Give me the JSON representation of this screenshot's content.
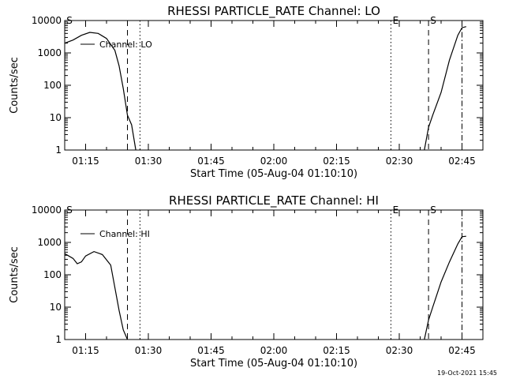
{
  "footer": {
    "date_stamp": "19-Oct-2021 15:45"
  },
  "chart_data": [
    {
      "type": "line",
      "title": "RHESSI PARTICLE_RATE Channel: LO",
      "xlabel": "Start Time (05-Aug-04 01:10:10)",
      "ylabel": "Counts/sec",
      "yscale": "log",
      "ylim": [
        1,
        10000
      ],
      "xlim": [
        "01:10",
        "02:50"
      ],
      "x_ticks": [
        "01:15",
        "01:30",
        "01:45",
        "02:00",
        "02:15",
        "02:30",
        "02:45"
      ],
      "y_ticks": [
        "1",
        "10",
        "100",
        "1000",
        "10000"
      ],
      "legend": {
        "label": "Channel: LO",
        "placement": "top-left"
      },
      "markers": [
        {
          "label": "S",
          "time": "01:10",
          "style": "none"
        },
        {
          "label": "",
          "time": "01:25",
          "style": "dashed"
        },
        {
          "label": "",
          "time": "01:28",
          "style": "dotted"
        },
        {
          "label": "E",
          "time": "02:28",
          "style": "dotted"
        },
        {
          "label": "S",
          "time": "02:37",
          "style": "dashed"
        },
        {
          "label": "",
          "time": "02:45",
          "style": "dashdot"
        }
      ],
      "series": [
        {
          "segments": [
            [
              [
                "01:10",
                2000
              ],
              [
                "01:12",
                2500
              ],
              [
                "01:14",
                3500
              ],
              [
                "01:16",
                4300
              ],
              [
                "01:18",
                4000
              ],
              [
                "01:20",
                2800
              ],
              [
                "01:22",
                1200
              ],
              [
                "01:23",
                400
              ],
              [
                "01:24",
                80
              ],
              [
                "01:25",
                12
              ],
              [
                "01:26",
                6
              ],
              [
                "01:27",
                1
              ]
            ],
            [
              [
                "02:36",
                1
              ],
              [
                "02:37",
                5
              ],
              [
                "02:38",
                12
              ],
              [
                "02:40",
                60
              ],
              [
                "02:42",
                600
              ],
              [
                "02:44",
                3500
              ],
              [
                "02:45",
                6000
              ],
              [
                "02:46",
                6500
              ]
            ]
          ]
        }
      ]
    },
    {
      "type": "line",
      "title": "RHESSI PARTICLE_RATE Channel: HI",
      "xlabel": "Start Time (05-Aug-04 01:10:10)",
      "ylabel": "Counts/sec",
      "yscale": "log",
      "ylim": [
        1,
        10000
      ],
      "xlim": [
        "01:10",
        "02:50"
      ],
      "x_ticks": [
        "01:15",
        "01:30",
        "01:45",
        "02:00",
        "02:15",
        "02:30",
        "02:45"
      ],
      "y_ticks": [
        "1",
        "10",
        "100",
        "1000",
        "10000"
      ],
      "legend": {
        "label": "Channel: HI",
        "placement": "top-left"
      },
      "markers": [
        {
          "label": "S",
          "time": "01:10",
          "style": "none"
        },
        {
          "label": "",
          "time": "01:25",
          "style": "dashed"
        },
        {
          "label": "",
          "time": "01:28",
          "style": "dotted"
        },
        {
          "label": "E",
          "time": "02:28",
          "style": "dotted"
        },
        {
          "label": "S",
          "time": "02:37",
          "style": "dashed"
        },
        {
          "label": "",
          "time": "02:45",
          "style": "dashdot"
        }
      ],
      "series": [
        {
          "segments": [
            [
              [
                "01:10",
                450
              ],
              [
                "01:12",
                320
              ],
              [
                "01:13",
                220
              ],
              [
                "01:14",
                250
              ],
              [
                "01:15",
                380
              ],
              [
                "01:17",
                520
              ],
              [
                "01:19",
                420
              ],
              [
                "01:21",
                200
              ],
              [
                "01:22",
                40
              ],
              [
                "01:23",
                8
              ],
              [
                "01:24",
                2
              ],
              [
                "01:25",
                1
              ]
            ],
            [
              [
                "02:36",
                1
              ],
              [
                "02:37",
                4
              ],
              [
                "02:38",
                10
              ],
              [
                "02:40",
                60
              ],
              [
                "02:42",
                250
              ],
              [
                "02:44",
                900
              ],
              [
                "02:45",
                1500
              ],
              [
                "02:46",
                1550
              ]
            ]
          ]
        }
      ]
    }
  ]
}
